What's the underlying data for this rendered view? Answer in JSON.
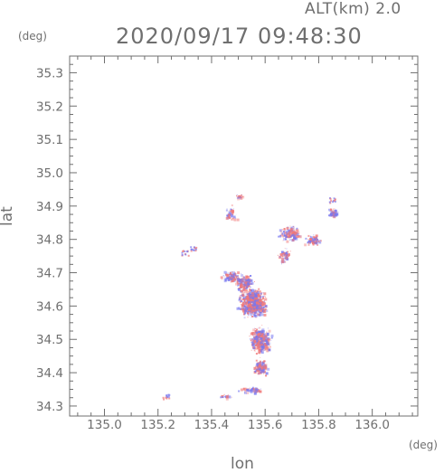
{
  "header": {
    "altitude_label": "ALT(km)  2.0",
    "timestamp": "2020/09/17 09:48:30"
  },
  "axes": {
    "lat_unit": "(deg)",
    "lon_unit": "(deg)",
    "xlabel": "lon",
    "ylabel": "lat"
  },
  "chart_data": {
    "type": "heatmap",
    "title": "",
    "xlabel": "lon",
    "ylabel": "lat",
    "xlim": [
      134.87,
      136.17
    ],
    "ylim": [
      34.27,
      35.35
    ],
    "x_ticks": [
      135.0,
      135.2,
      135.4,
      135.6,
      135.8,
      136.0
    ],
    "y_ticks": [
      34.3,
      34.4,
      34.5,
      34.6,
      34.7,
      34.8,
      34.9,
      35.0,
      35.1,
      35.2,
      35.3
    ],
    "x_tick_labels": [
      "135.0",
      "135.2",
      "135.4",
      "135.6",
      "135.8",
      "136.0"
    ],
    "y_tick_labels": [
      "34.3",
      "34.4",
      "34.5",
      "34.6",
      "34.7",
      "34.8",
      "34.9",
      "35.0",
      "35.1",
      "35.2",
      "35.3"
    ],
    "grid": false,
    "colors": {
      "positive": "#f07878",
      "negative": "#7878f0"
    }
  }
}
